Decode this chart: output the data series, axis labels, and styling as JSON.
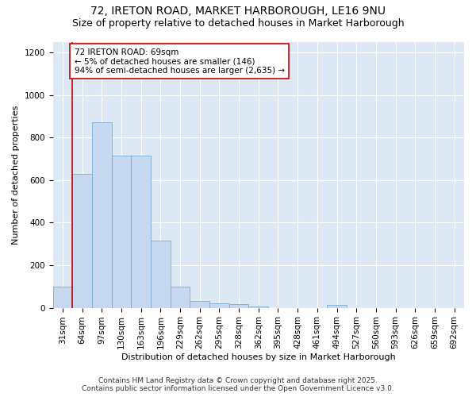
{
  "title": "72, IRETON ROAD, MARKET HARBOROUGH, LE16 9NU",
  "subtitle": "Size of property relative to detached houses in Market Harborough",
  "xlabel": "Distribution of detached houses by size in Market Harborough",
  "ylabel": "Number of detached properties",
  "footer_line1": "Contains HM Land Registry data © Crown copyright and database right 2025.",
  "footer_line2": "Contains public sector information licensed under the Open Government Licence v3.0.",
  "bin_labels": [
    "31sqm",
    "64sqm",
    "97sqm",
    "130sqm",
    "163sqm",
    "196sqm",
    "229sqm",
    "262sqm",
    "295sqm",
    "328sqm",
    "362sqm",
    "395sqm",
    "428sqm",
    "461sqm",
    "494sqm",
    "527sqm",
    "560sqm",
    "593sqm",
    "626sqm",
    "659sqm",
    "692sqm"
  ],
  "bar_values": [
    100,
    630,
    870,
    715,
    715,
    315,
    100,
    33,
    22,
    18,
    5,
    0,
    0,
    0,
    12,
    0,
    0,
    0,
    0,
    0,
    0
  ],
  "bar_color": "#c5d8f0",
  "bar_edge_color": "#7aadd4",
  "vline_color": "#cc0000",
  "vline_label_text": "72 IRETON ROAD: 69sqm\n← 5% of detached houses are smaller (146)\n94% of semi-detached houses are larger (2,635) →",
  "annotation_box_color": "#cc0000",
  "ylim": [
    0,
    1250
  ],
  "yticks": [
    0,
    200,
    400,
    600,
    800,
    1000,
    1200
  ],
  "background_color": "#dde8f5",
  "grid_color": "#ffffff",
  "title_fontsize": 10,
  "subtitle_fontsize": 9,
  "axis_label_fontsize": 8,
  "tick_fontsize": 7.5,
  "annotation_fontsize": 7.5,
  "footer_fontsize": 6.5
}
